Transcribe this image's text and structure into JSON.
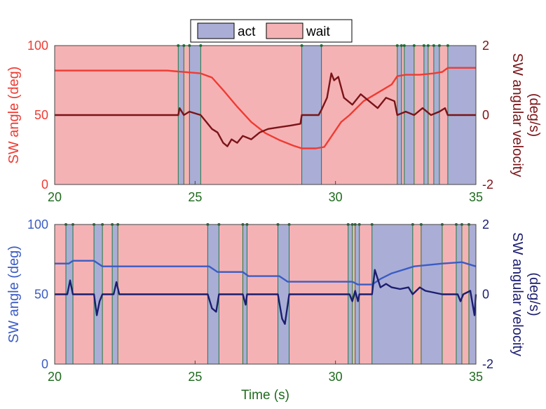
{
  "colors": {
    "act": "#aaaed6",
    "wait": "#f5b2b5",
    "top_angle": "#ef3b32",
    "top_velocity": "#7a1418",
    "bottom_angle": "#3b5cc4",
    "bottom_velocity": "#1c1e70",
    "boundary": "#1e7a3a",
    "x_ticks": "#1e6b1e"
  },
  "legend": {
    "act_label": "act",
    "wait_label": "wait"
  },
  "chart_data": [
    {
      "type": "line",
      "id": "top",
      "x_range": [
        20,
        35
      ],
      "x_ticks": [
        "20",
        "25",
        "30",
        "35"
      ],
      "y_left": {
        "label": "SW angle (deg)",
        "range": [
          0,
          100
        ],
        "ticks": [
          "0",
          "50",
          "100"
        ]
      },
      "y_right": {
        "label_line1": "SW angular velocity",
        "label_line2": "(deg/s)",
        "range": [
          -2,
          2
        ],
        "ticks": [
          "-2",
          "0",
          "2"
        ]
      },
      "boundaries": [
        24.4,
        24.6,
        24.8,
        25.2,
        28.8,
        29.5,
        32.2,
        32.35,
        32.45,
        32.8,
        33.15,
        33.3,
        33.5,
        33.7,
        34.0
      ],
      "first_state": "wait",
      "angle_series": {
        "name": "SW angle",
        "x": [
          20,
          24.0,
          24.6,
          25.2,
          25.6,
          26.0,
          26.5,
          27.0,
          27.5,
          28.0,
          28.5,
          28.8,
          29.3,
          29.6,
          29.9,
          30.2,
          30.5,
          31.0,
          31.5,
          32.0,
          32.2,
          32.5,
          33.0,
          33.5,
          33.8,
          34.0,
          35
        ],
        "y": [
          82,
          82,
          81,
          80,
          77,
          68,
          56,
          45,
          37,
          32,
          28,
          26,
          26,
          27,
          36,
          45,
          50,
          60,
          66,
          72,
          78,
          79,
          79,
          80,
          81,
          84,
          84
        ]
      },
      "velocity_series": {
        "name": "SW angular velocity",
        "x": [
          20,
          24.4,
          24.45,
          24.6,
          24.8,
          25.2,
          25.4,
          25.6,
          25.8,
          26.0,
          26.15,
          26.3,
          26.5,
          26.7,
          27.0,
          27.3,
          27.6,
          28.0,
          28.4,
          28.75,
          28.8,
          29.4,
          29.5,
          29.7,
          29.85,
          29.95,
          30.1,
          30.3,
          30.6,
          30.9,
          31.2,
          31.5,
          31.8,
          32.1,
          32.2,
          32.5,
          32.8,
          33.1,
          33.4,
          33.7,
          33.9,
          34.0,
          35
        ],
        "y": [
          0,
          0,
          0.2,
          0,
          0.1,
          0,
          -0.2,
          -0.4,
          -0.5,
          -0.8,
          -0.9,
          -0.7,
          -0.8,
          -0.6,
          -0.7,
          -0.5,
          -0.4,
          -0.35,
          -0.3,
          -0.25,
          0,
          0,
          0.15,
          0.5,
          1.2,
          1.0,
          1.1,
          0.5,
          0.3,
          0.6,
          0.4,
          0.2,
          0.5,
          0.4,
          0,
          0.1,
          0,
          0.2,
          0,
          0.1,
          0.2,
          0,
          0
        ]
      }
    },
    {
      "type": "line",
      "id": "bottom",
      "x_range": [
        20,
        35
      ],
      "x_ticks": [
        "20",
        "25",
        "30",
        "35"
      ],
      "xlabel": "Time (s)",
      "y_left": {
        "label": "SW angle (deg)",
        "range": [
          0,
          100
        ],
        "ticks": [
          "0",
          "50",
          "100"
        ]
      },
      "y_right": {
        "label_line1": "SW angular velocity",
        "label_line2": "(deg/s)",
        "range": [
          -2,
          2
        ],
        "ticks": [
          "-2",
          "0",
          "2"
        ]
      },
      "boundaries": [
        20.4,
        20.65,
        21.4,
        21.7,
        22.05,
        22.25,
        25.45,
        25.85,
        26.7,
        26.85,
        27.95,
        28.35,
        30.45,
        30.6,
        30.7,
        30.85,
        31.3,
        32.75,
        33.05,
        33.8,
        34.3,
        34.5,
        34.75
      ],
      "first_state": "wait",
      "angle_series": {
        "name": "SW angle",
        "x": [
          20,
          20.5,
          20.65,
          21.4,
          21.7,
          22.0,
          25.5,
          25.8,
          26.7,
          26.9,
          28.0,
          28.3,
          30.6,
          30.8,
          31.3,
          31.6,
          32.0,
          32.8,
          33.8,
          34.5,
          35
        ],
        "y": [
          72,
          72,
          74,
          74,
          70,
          70,
          70,
          66,
          66,
          63,
          63,
          59,
          59,
          57,
          57,
          61,
          65,
          70,
          72,
          73,
          70
        ]
      },
      "velocity_series": {
        "name": "SW angular velocity",
        "x": [
          20,
          20.45,
          20.55,
          20.65,
          21.4,
          21.5,
          21.6,
          21.7,
          22.1,
          22.2,
          22.3,
          25.45,
          25.6,
          25.75,
          25.85,
          26.7,
          26.8,
          26.85,
          27.95,
          28.1,
          28.2,
          28.35,
          30.5,
          30.6,
          30.7,
          30.8,
          30.85,
          31.3,
          31.4,
          31.6,
          31.8,
          32.0,
          32.3,
          32.6,
          32.75,
          33.0,
          33.2,
          33.8,
          34.35,
          34.45,
          34.55,
          34.8,
          34.95,
          35
        ],
        "y": [
          0,
          0,
          0.4,
          0,
          0,
          -0.6,
          -0.2,
          0,
          0,
          0.35,
          0,
          0,
          -0.4,
          -0.5,
          0,
          0,
          -0.3,
          0,
          0,
          -0.7,
          -0.85,
          0,
          0,
          -0.2,
          0.1,
          -0.2,
          0,
          0,
          0.7,
          0.2,
          0.3,
          0.2,
          0.15,
          0.2,
          0,
          0.2,
          0.1,
          0,
          0,
          -0.2,
          0,
          0.1,
          -0.6,
          0
        ]
      }
    }
  ]
}
